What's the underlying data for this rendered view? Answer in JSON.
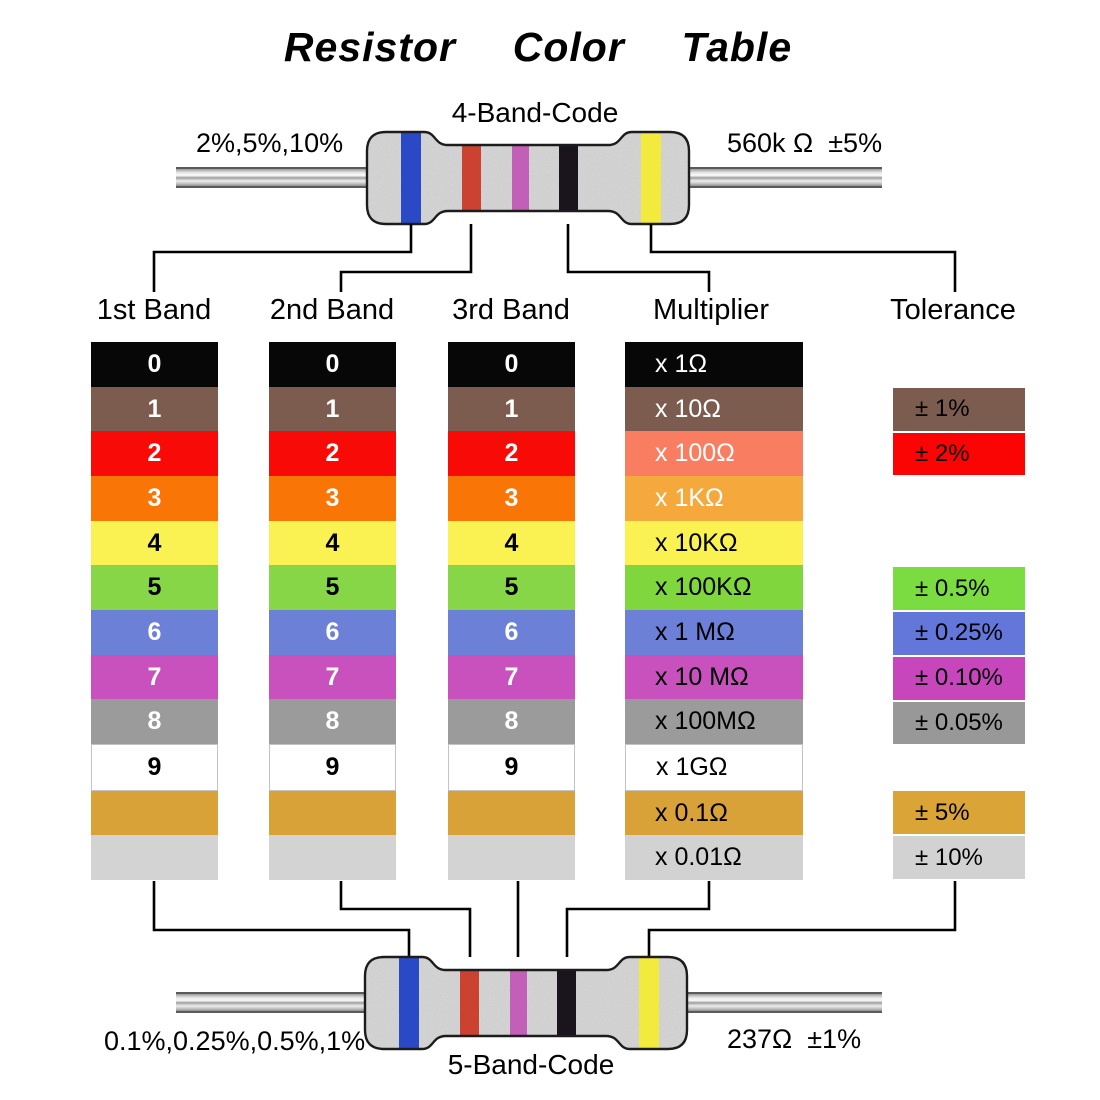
{
  "title": "Resistor  Color  Table",
  "top_resistor": {
    "code_label": "4-Band-Code",
    "left_label": "2%,5%,10%",
    "right_label": "560k Ω  ±5%",
    "bands": [
      "blue",
      "red",
      "violet",
      "black",
      "yellow"
    ]
  },
  "bottom_resistor": {
    "code_label": "5-Band-Code",
    "left_label": "0.1%,0.25%,0.5%,1%",
    "right_label": "237Ω  ±1%",
    "bands": [
      "blue",
      "red",
      "violet",
      "black",
      "yellow"
    ]
  },
  "headers": [
    "1st Band",
    "2nd Band",
    "3rd Band",
    "Multiplier",
    "Tolerance"
  ],
  "resistor_band_colors": [
    {
      "name": "blue",
      "hex": "#2A49C6"
    },
    {
      "name": "red",
      "hex": "#CB4330"
    },
    {
      "name": "violet",
      "hex": "#C25FB7"
    },
    {
      "name": "black",
      "hex": "#1A141C"
    },
    {
      "name": "yellow",
      "hex": "#F2EA3C"
    }
  ],
  "color_rows": [
    {
      "color": "black",
      "digit": "0",
      "band_hex": "#070707",
      "band_text": "#FFFFFF",
      "multiplier": "x 1Ω",
      "mult_hex": "#070707",
      "mult_text": "#FFFFFF",
      "tolerance": null,
      "tol_hex": null
    },
    {
      "color": "brown",
      "digit": "1",
      "band_hex": "#7C5C4F",
      "band_text": "#FFFFFF",
      "multiplier": "x 10Ω",
      "mult_hex": "#7C5C4F",
      "mult_text": "#FFFFFF",
      "tolerance": "± 1%",
      "tol_hex": "#7C5C4F"
    },
    {
      "color": "red",
      "digit": "2",
      "band_hex": "#F80B07",
      "band_text": "#FFFFFF",
      "multiplier": "x 100Ω",
      "mult_hex": "#F97E61",
      "mult_text": "#FFFFFF",
      "tolerance": "± 2%",
      "tol_hex": "#FB0404"
    },
    {
      "color": "orange",
      "digit": "3",
      "band_hex": "#F87506",
      "band_text": "#FFFFFF",
      "multiplier": "x 1KΩ",
      "mult_hex": "#F5A83C",
      "mult_text": "#FFFFFF",
      "tolerance": null,
      "tol_hex": null
    },
    {
      "color": "yellow",
      "digit": "4",
      "band_hex": "#F9F252",
      "band_text": "#000000",
      "multiplier": "x 10KΩ",
      "mult_hex": "#F9F252",
      "mult_text": "#000000",
      "tolerance": null,
      "tol_hex": null
    },
    {
      "color": "green",
      "digit": "5",
      "band_hex": "#86D648",
      "band_text": "#000000",
      "multiplier": "x 100KΩ",
      "mult_hex": "#7FD63D",
      "mult_text": "#000000",
      "tolerance": "± 0.5%",
      "tol_hex": "#7BDC41"
    },
    {
      "color": "blue",
      "digit": "6",
      "band_hex": "#6C80D8",
      "band_text": "#FFFFFF",
      "multiplier": "x 1 MΩ",
      "mult_hex": "#6C80D8",
      "mult_text": "#000000",
      "tolerance": "± 0.25%",
      "tol_hex": "#6377DB"
    },
    {
      "color": "violet",
      "digit": "7",
      "band_hex": "#C851BD",
      "band_text": "#FFFFFF",
      "multiplier": "x 10 MΩ",
      "mult_hex": "#C851BD",
      "mult_text": "#000000",
      "tolerance": "± 0.10%",
      "tol_hex": "#C746BC"
    },
    {
      "color": "gray",
      "digit": "8",
      "band_hex": "#9B9B9B",
      "band_text": "#FFFFFF",
      "multiplier": "x 100MΩ",
      "mult_hex": "#9B9B9B",
      "mult_text": "#000000",
      "tolerance": "± 0.05%",
      "tol_hex": "#989898"
    },
    {
      "color": "white",
      "digit": "9",
      "band_hex": "#FFFFFF",
      "band_text": "#000000",
      "multiplier": "x 1GΩ",
      "mult_hex": "#FFFFFF",
      "mult_text": "#000000",
      "tolerance": null,
      "tol_hex": null
    },
    {
      "color": "gold",
      "digit": "",
      "band_hex": "#D9A238",
      "band_text": "#000000",
      "multiplier": "x 0.1Ω",
      "mult_hex": "#D9A238",
      "mult_text": "#000000",
      "tolerance": "± 5%",
      "tol_hex": "#DBA436"
    },
    {
      "color": "silver",
      "digit": "",
      "band_hex": "#D3D3D3",
      "band_text": "#000000",
      "multiplier": "x 0.01Ω",
      "mult_hex": "#D2D2D2",
      "mult_text": "#000000",
      "tolerance": "± 10%",
      "tol_hex": "#D2D2D2"
    }
  ]
}
